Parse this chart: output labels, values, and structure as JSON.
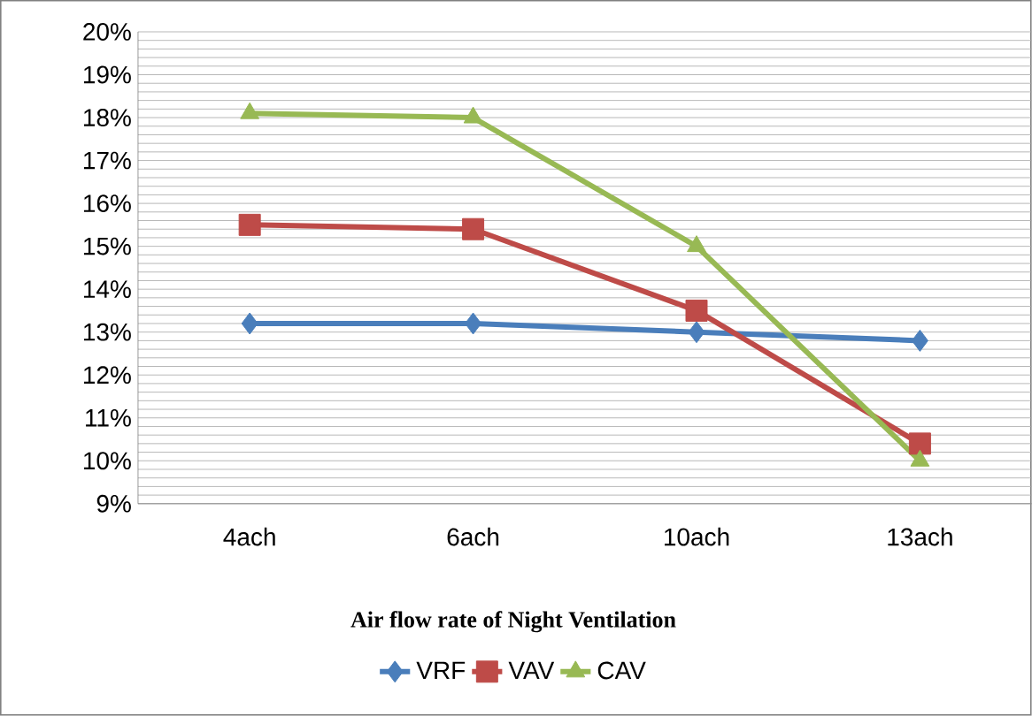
{
  "chart_data": {
    "type": "line",
    "xlabel": "Air flow rate of Night Ventilation",
    "categories": [
      "4ach",
      "6ach",
      "10ach",
      "13ach"
    ],
    "series": [
      {
        "name": "VRF",
        "color": "#4a7ebb",
        "marker": "diamond",
        "values": [
          13.2,
          13.2,
          13.0,
          12.8
        ]
      },
      {
        "name": "VAV",
        "color": "#be4b48",
        "marker": "square",
        "values": [
          15.5,
          15.4,
          13.5,
          10.4
        ]
      },
      {
        "name": "CAV",
        "color": "#98b954",
        "marker": "triangle",
        "values": [
          18.1,
          18.0,
          15.0,
          10.0
        ]
      }
    ],
    "ylim": [
      9,
      20
    ],
    "yticks": [
      {
        "value": 9,
        "label": "9%"
      },
      {
        "value": 10,
        "label": "10%"
      },
      {
        "value": 11,
        "label": "11%"
      },
      {
        "value": 12,
        "label": "12%"
      },
      {
        "value": 13,
        "label": "13%"
      },
      {
        "value": 14,
        "label": "14%"
      },
      {
        "value": 15,
        "label": "15%"
      },
      {
        "value": 16,
        "label": "16%"
      },
      {
        "value": 17,
        "label": "17%"
      },
      {
        "value": 18,
        "label": "18%"
      },
      {
        "value": 19,
        "label": "19%"
      },
      {
        "value": 20,
        "label": "20%"
      }
    ],
    "grid": "y",
    "legend": "bottom",
    "line_style": "solid"
  }
}
